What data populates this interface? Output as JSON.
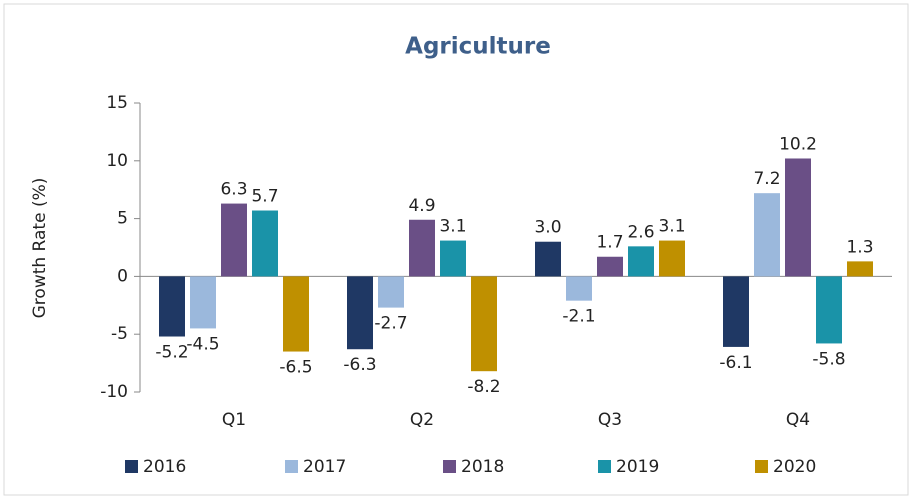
{
  "chart_data": {
    "type": "bar",
    "title": "Agriculture",
    "y_label": "Growth Rate (%)",
    "categories": [
      "Q1",
      "Q2",
      "Q3",
      "Q4"
    ],
    "series": [
      {
        "name": "2016",
        "color": "#1f3864",
        "values": [
          -5.2,
          -6.3,
          3.0,
          -6.1
        ],
        "value_labels": [
          "-5.2",
          "-6.3",
          "3.0",
          "-6.1"
        ]
      },
      {
        "name": "2017",
        "color": "#9bb8dc",
        "values": [
          -4.5,
          -2.7,
          -2.1,
          7.2
        ]
      },
      {
        "name": "2018",
        "color": "#6a4f86",
        "values": [
          6.3,
          4.9,
          1.7,
          10.2
        ]
      },
      {
        "name": "2019",
        "color": "#1a93a8",
        "values": [
          5.7,
          3.1,
          2.6,
          -5.8
        ]
      },
      {
        "name": "2020",
        "color": "#bf9000",
        "values": [
          -6.5,
          -8.2,
          3.1,
          1.3
        ]
      }
    ],
    "ylim": [
      -10,
      15
    ],
    "yticks": [
      -10,
      -5,
      0,
      5,
      10,
      15
    ],
    "legend": "bottom"
  }
}
